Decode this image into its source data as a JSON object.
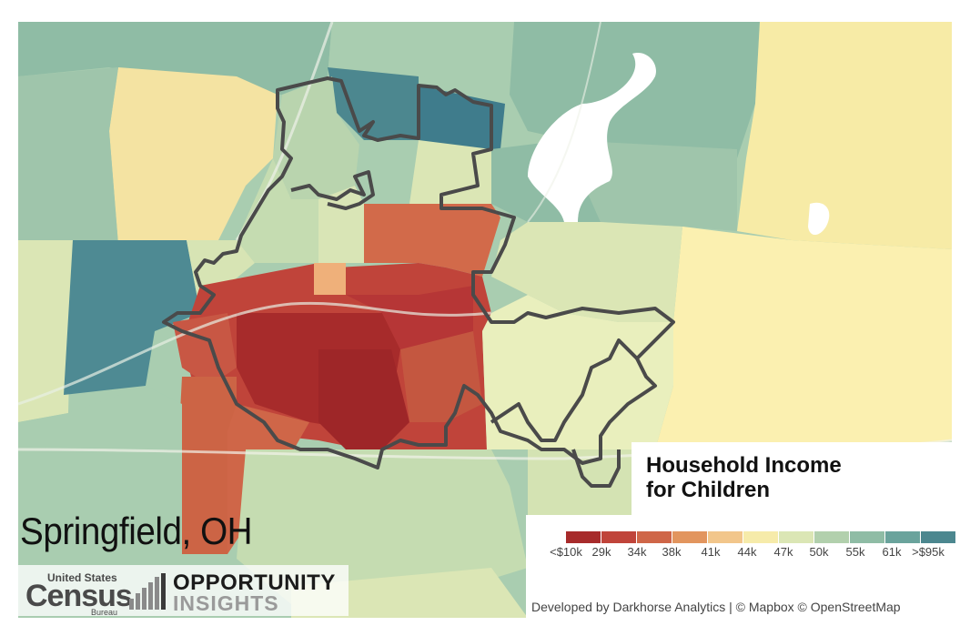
{
  "map": {
    "city_label": "Springfield, OH",
    "legend": {
      "title_line1": "Household Income",
      "title_line2": "for Children",
      "colors": [
        "#a72b2b",
        "#c0443a",
        "#cf6648",
        "#e2955e",
        "#f2c68b",
        "#f6ebaa",
        "#dbe6b5",
        "#b2d0ad",
        "#8fbca5",
        "#6aa39c",
        "#4c878f",
        "#2f6c85"
      ],
      "ticks": [
        "<$10k",
        "29k",
        "34k",
        "38k",
        "41k",
        "44k",
        "47k",
        "50k",
        "55k",
        "61k",
        ">$95k"
      ]
    },
    "credit": "Developed by Darkhorse Analytics | © Mapbox © OpenStreetMap",
    "logos": {
      "census_small": "United States",
      "census_big": "Census",
      "census_bureau": "Bureau",
      "oi_line1": "OPPORTUNITY",
      "oi_line2": "INSIGHTS"
    },
    "water": "lake-shape",
    "boundary_color": "#4a4a4a"
  }
}
